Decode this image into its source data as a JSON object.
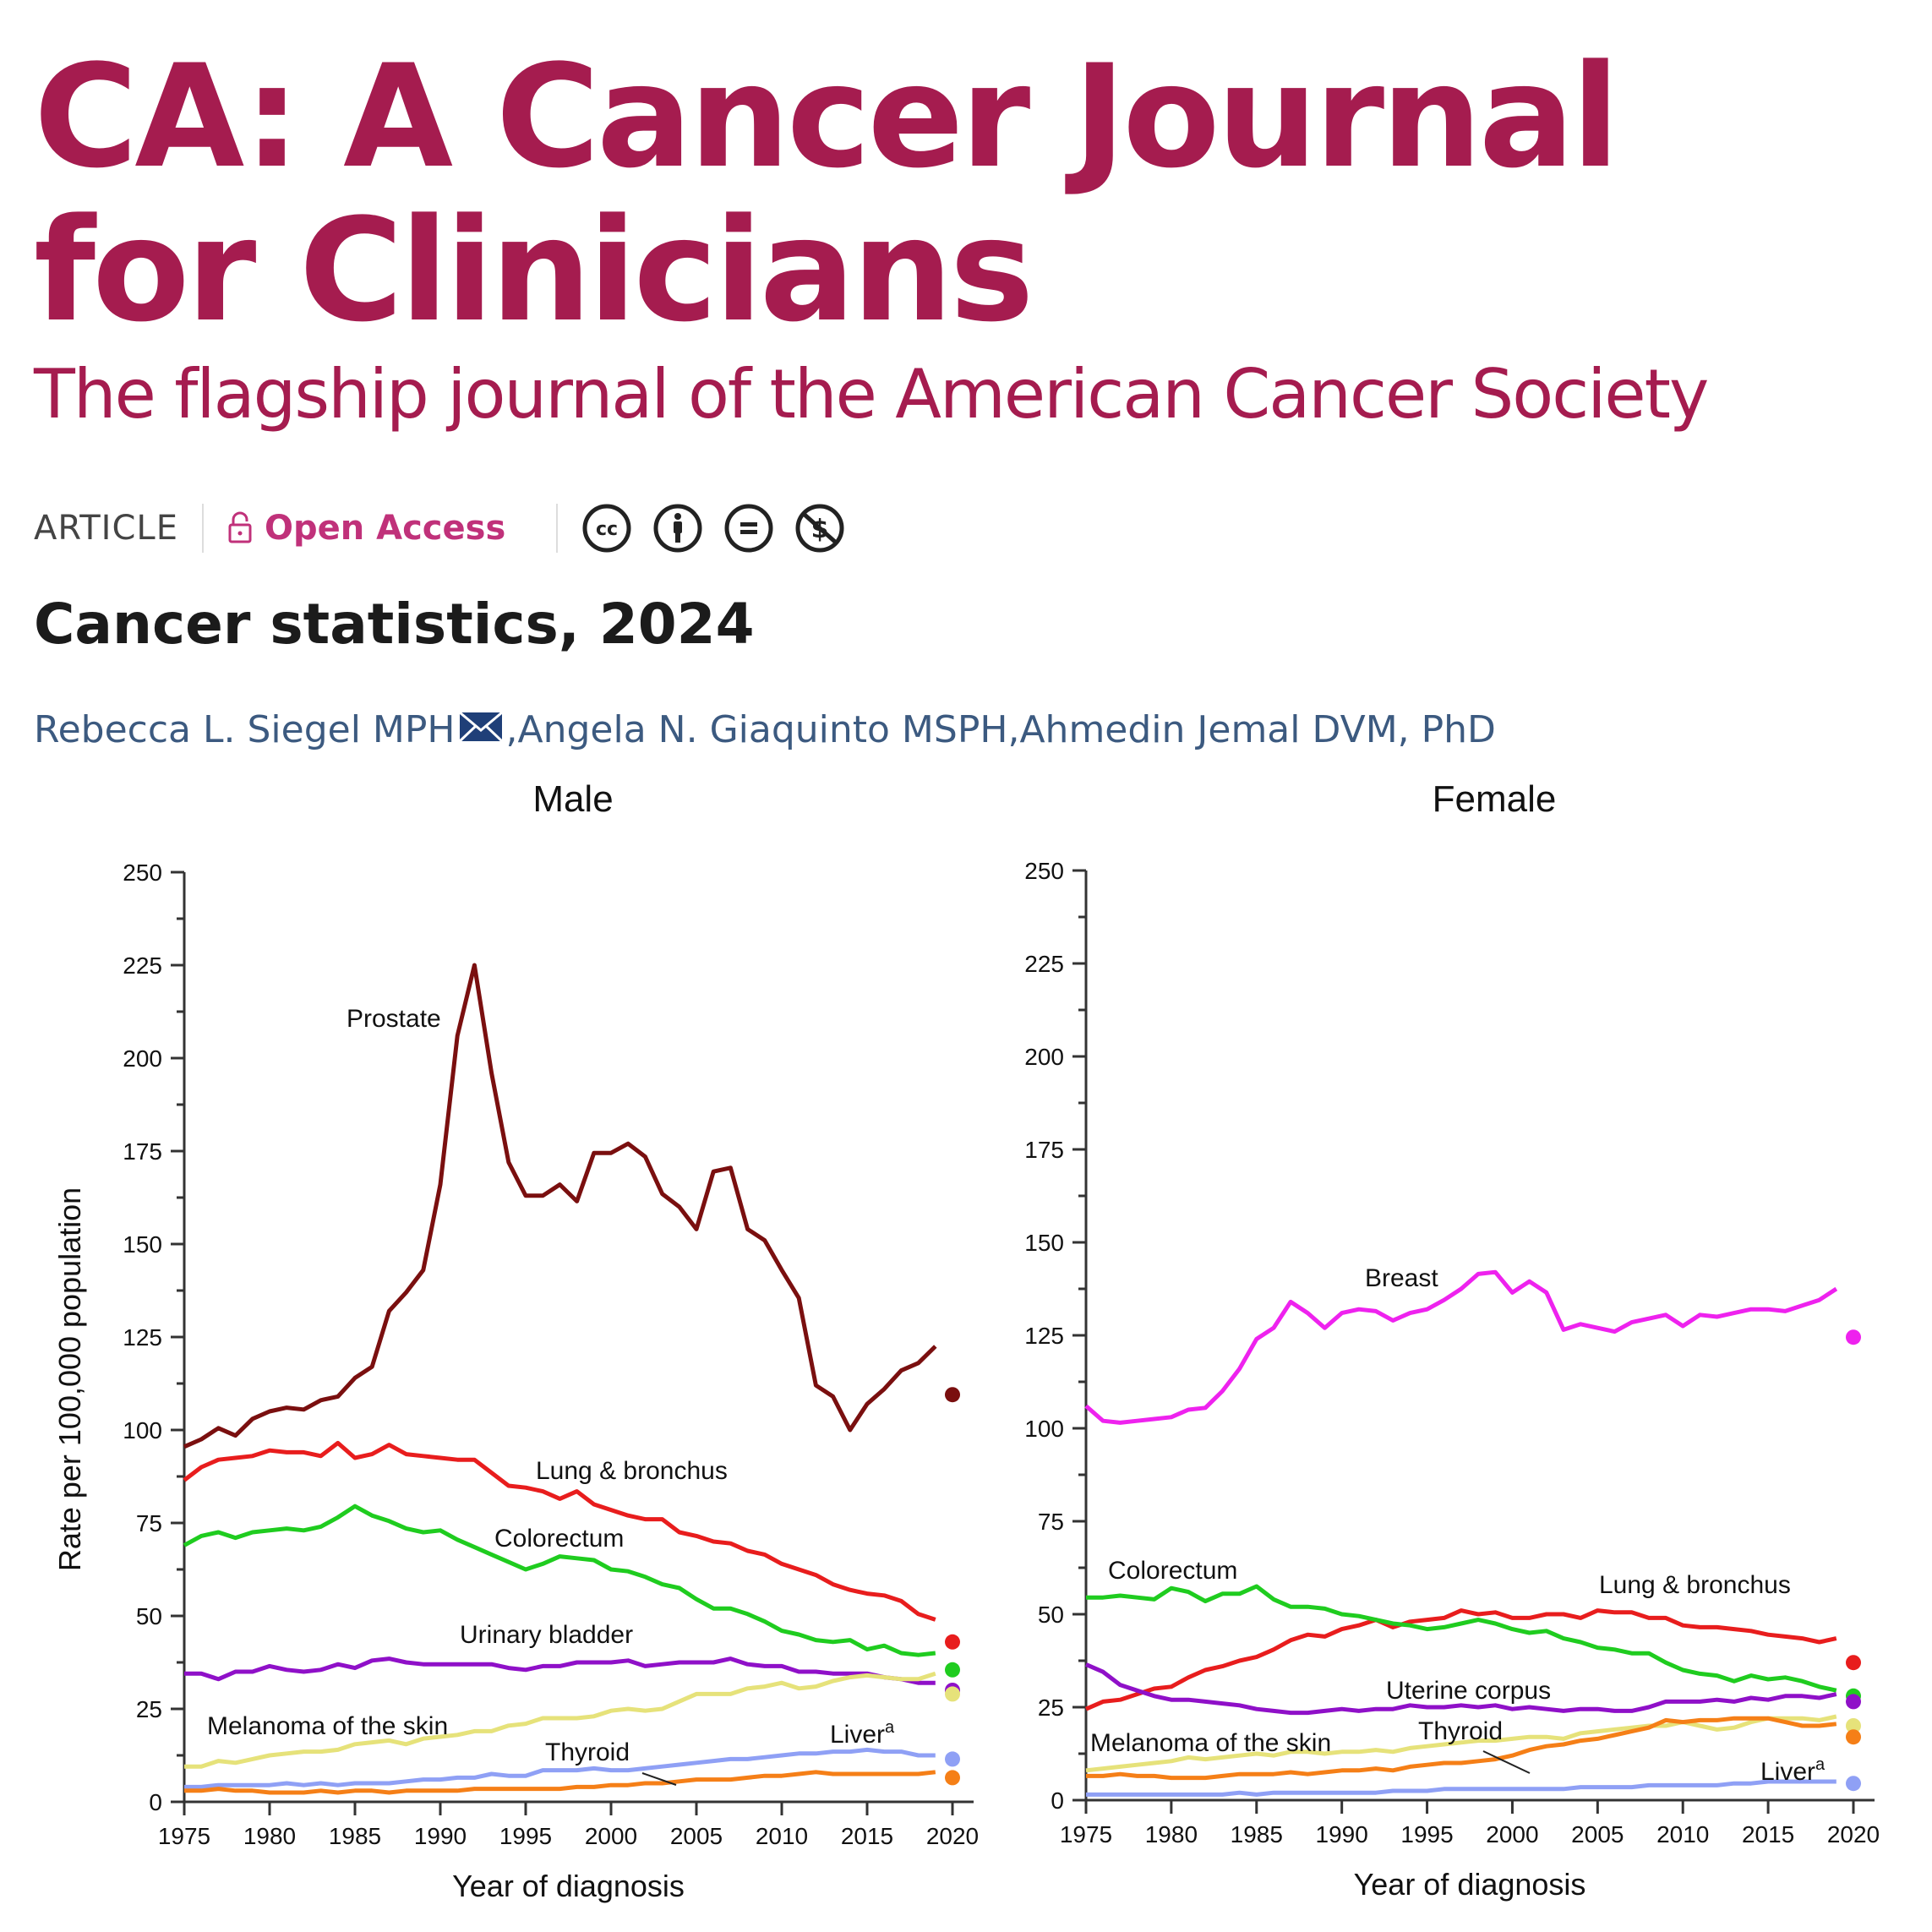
{
  "journal": {
    "title_line1": "CA: A Cancer Journal",
    "title_line2": "for Clinicians",
    "subtitle": "The flagship journal of the American Cancer Society",
    "brand_color": "#a51c4f"
  },
  "meta": {
    "article_type": "ARTICLE",
    "open_access_label": "Open Access",
    "open_access_icon": "lock-open-icon",
    "license_icons": [
      "cc-icon",
      "cc-by-icon",
      "cc-nd-icon",
      "cc-nc-icon"
    ]
  },
  "article": {
    "title": "Cancer statistics, 2024",
    "authors": [
      {
        "name": "Rebecca L. Siegel MPH",
        "corresponding": true
      },
      {
        "name": "Angela N. Giaquinto MSPH",
        "corresponding": false
      },
      {
        "name": "Ahmedin Jemal DVM, PhD",
        "corresponding": false
      }
    ],
    "author_separator": ", "
  },
  "chart_data": [
    {
      "type": "line",
      "title": "Male",
      "xlabel": "Year of diagnosis",
      "ylabel": "Rate per 100,000 population",
      "xlim": [
        1975,
        2020
      ],
      "ylim": [
        0,
        250
      ],
      "xticks": [
        1975,
        1980,
        1985,
        1990,
        1995,
        2000,
        2005,
        2010,
        2015,
        2020
      ],
      "yticks": [
        0,
        25,
        50,
        75,
        100,
        125,
        150,
        175,
        200,
        225,
        250
      ],
      "x": [
        1975,
        1976,
        1977,
        1978,
        1979,
        1980,
        1981,
        1982,
        1983,
        1984,
        1985,
        1986,
        1987,
        1988,
        1989,
        1990,
        1991,
        1992,
        1993,
        1994,
        1995,
        1996,
        1997,
        1998,
        1999,
        2000,
        2001,
        2002,
        2003,
        2004,
        2005,
        2006,
        2007,
        2008,
        2009,
        2010,
        2011,
        2012,
        2013,
        2014,
        2015,
        2016,
        2017,
        2018,
        2019
      ],
      "series": [
        {
          "name": "Prostate",
          "label": "Prostate",
          "color": "#7a0f0f",
          "point_2020": 109.5,
          "values": [
            95.5,
            97.5,
            100.5,
            98.5,
            103,
            105,
            106,
            105.5,
            108,
            109,
            114,
            117,
            132,
            137,
            143,
            166,
            206,
            225,
            196,
            172,
            163,
            163,
            166,
            161.5,
            174.5,
            174.5,
            177,
            173.5,
            163.5,
            160,
            154,
            169.5,
            170.5,
            154,
            151,
            143,
            135.5,
            112,
            109,
            100,
            107,
            111,
            116,
            118,
            122.5
          ]
        },
        {
          "name": "Lung & bronchus",
          "label": "Lung & bronchus",
          "color": "#e81d1d",
          "point_2020": 43,
          "values": [
            86.5,
            90,
            92,
            92.5,
            93,
            94.5,
            94,
            94,
            93,
            96.5,
            92.5,
            93.5,
            96,
            93.5,
            93,
            92.5,
            92,
            92,
            88.5,
            85,
            84.5,
            83.5,
            81.5,
            83.5,
            80,
            78.5,
            77,
            76,
            76,
            72.5,
            71.5,
            70,
            69.5,
            67.5,
            66.5,
            64,
            62.5,
            61,
            58.5,
            57,
            56,
            55.5,
            54,
            50.5,
            49
          ]
        },
        {
          "name": "Colorectum",
          "label": "Colorectum",
          "color": "#1fcc1f",
          "point_2020": 35.5,
          "values": [
            69,
            71.5,
            72.5,
            71,
            72.5,
            73,
            73.5,
            73,
            74,
            76.5,
            79.5,
            77,
            75.5,
            73.5,
            72.5,
            73,
            70.5,
            68.5,
            66.5,
            64.5,
            62.5,
            64,
            66,
            65.5,
            65,
            62.5,
            62,
            60.5,
            58.5,
            57.5,
            54.5,
            52,
            52,
            50.5,
            48.5,
            46,
            45,
            43.5,
            43,
            43.5,
            41,
            42,
            40,
            39.5,
            40
          ]
        },
        {
          "name": "Urinary bladder",
          "label": "Urinary bladder",
          "color": "#8f10c8",
          "point_2020": 30,
          "values": [
            34.5,
            34.5,
            33,
            35,
            35,
            36.5,
            35.5,
            35,
            35.5,
            37,
            36,
            38,
            38.5,
            37.5,
            37,
            37,
            37,
            37,
            37,
            36,
            35.5,
            36.5,
            36.5,
            37.5,
            37.5,
            37.5,
            38,
            36.5,
            37,
            37.5,
            37.5,
            37.5,
            38.5,
            37,
            36.5,
            36.5,
            35,
            35,
            34.5,
            34.5,
            34.5,
            33.5,
            33,
            32,
            32
          ]
        },
        {
          "name": "Melanoma of the skin",
          "label": "Melanoma of the skin",
          "color": "#e6e27a",
          "point_2020": 29,
          "values": [
            9.5,
            9.5,
            11,
            10.5,
            11.5,
            12.5,
            13,
            13.5,
            13.5,
            14,
            15.5,
            16,
            16.5,
            15.5,
            17,
            17.5,
            18,
            19,
            19,
            20.5,
            21,
            22.5,
            22.5,
            22.5,
            23,
            24.5,
            25,
            24.5,
            25,
            27,
            29,
            29,
            29,
            30.5,
            31,
            32,
            30.5,
            31,
            32.5,
            33.5,
            34,
            33.5,
            33,
            33,
            34.5
          ]
        },
        {
          "name": "Liver",
          "label": "Liver",
          "label_superscript": "a",
          "color": "#8fa0f5",
          "point_2020": 11.5,
          "values": [
            4,
            4,
            4.5,
            4.5,
            4.5,
            4.5,
            5,
            4.5,
            5,
            4.5,
            5,
            5,
            5,
            5.5,
            6,
            6,
            6.5,
            6.5,
            7.5,
            7,
            7,
            8.5,
            8.5,
            8.5,
            9,
            8.5,
            8.5,
            9,
            9.5,
            10,
            10.5,
            11,
            11.5,
            11.5,
            12,
            12.5,
            13,
            13,
            13.5,
            13.5,
            14,
            13.5,
            13.5,
            12.5,
            12.5
          ]
        },
        {
          "name": "Thyroid",
          "label": "Thyroid",
          "color": "#f57f17",
          "point_2020": 6.5,
          "values": [
            3,
            3,
            3.5,
            3,
            3,
            2.5,
            2.5,
            2.5,
            3,
            2.5,
            3,
            3,
            2.5,
            3,
            3,
            3,
            3,
            3.5,
            3.5,
            3.5,
            3.5,
            3.5,
            3.5,
            4,
            4,
            4.5,
            4.5,
            5,
            5,
            5.5,
            6,
            6,
            6,
            6.5,
            7,
            7,
            7.5,
            8,
            7.5,
            7.5,
            7.5,
            7.5,
            7.5,
            7.5,
            8
          ]
        }
      ]
    },
    {
      "type": "line",
      "title": "Female",
      "xlabel": "Year of diagnosis",
      "ylabel": "",
      "xlim": [
        1975,
        2020
      ],
      "ylim": [
        0,
        250
      ],
      "xticks": [
        1975,
        1980,
        1985,
        1990,
        1995,
        2000,
        2005,
        2010,
        2015,
        2020
      ],
      "yticks": [
        0,
        25,
        50,
        75,
        100,
        125,
        150,
        175,
        200,
        225,
        250
      ],
      "x": [
        1975,
        1976,
        1977,
        1978,
        1979,
        1980,
        1981,
        1982,
        1983,
        1984,
        1985,
        1986,
        1987,
        1988,
        1989,
        1990,
        1991,
        1992,
        1993,
        1994,
        1995,
        1996,
        1997,
        1998,
        1999,
        2000,
        2001,
        2002,
        2003,
        2004,
        2005,
        2006,
        2007,
        2008,
        2009,
        2010,
        2011,
        2012,
        2013,
        2014,
        2015,
        2016,
        2017,
        2018,
        2019
      ],
      "series": [
        {
          "name": "Breast",
          "label": "Breast",
          "color": "#ee22ee",
          "point_2020": 124.5,
          "values": [
            106,
            102,
            101.5,
            102,
            102.5,
            103,
            105,
            105.5,
            110,
            116,
            124,
            127,
            134,
            131,
            127,
            131,
            132,
            131.5,
            129,
            131,
            132,
            134.5,
            137.5,
            141.5,
            142,
            136.5,
            139.5,
            136.5,
            126.5,
            128,
            127,
            126,
            128.5,
            129.5,
            130.5,
            127.5,
            130.5,
            130,
            131,
            132,
            132,
            131.5,
            133,
            134.5,
            137.5
          ]
        },
        {
          "name": "Lung & bronchus",
          "label": "Lung & bronchus",
          "color": "#e81d1d",
          "point_2020": 37,
          "values": [
            24.5,
            26.5,
            27,
            28.5,
            30,
            30.5,
            33,
            35,
            36,
            37.5,
            38.5,
            40.5,
            43,
            44.5,
            44,
            46,
            47,
            48.5,
            46.5,
            48,
            48.5,
            49,
            51,
            50,
            50.5,
            49,
            49,
            50,
            50,
            49,
            51,
            50.5,
            50.5,
            49,
            49,
            47,
            46.5,
            46.5,
            46,
            45.5,
            44.5,
            44,
            43.5,
            42.5,
            43.5
          ]
        },
        {
          "name": "Colorectum",
          "label": "Colorectum",
          "color": "#1fcc1f",
          "point_2020": 28,
          "values": [
            54.5,
            54.5,
            55,
            54.5,
            54,
            57,
            56,
            53.5,
            55.5,
            55.5,
            57.5,
            54,
            52,
            52,
            51.5,
            50,
            49.5,
            48.5,
            47.5,
            47,
            46,
            46.5,
            47.5,
            48.5,
            47.5,
            46,
            45,
            45.5,
            43.5,
            42.5,
            41,
            40.5,
            39.5,
            39.5,
            37,
            35,
            34,
            33.5,
            32,
            33.5,
            32.5,
            33,
            32,
            30.5,
            29.5
          ]
        },
        {
          "name": "Uterine corpus",
          "label": "Uterine corpus",
          "color": "#8f10c8",
          "point_2020": 26.5,
          "values": [
            36.5,
            34.5,
            31,
            29.5,
            28,
            27,
            27,
            26.5,
            26,
            25.5,
            24.5,
            24,
            23.5,
            23.5,
            24,
            24.5,
            24,
            24.5,
            24.5,
            25.5,
            25,
            25,
            25.5,
            25,
            25.5,
            24.5,
            25,
            24.5,
            24,
            24.5,
            24.5,
            24,
            24,
            25,
            26.5,
            26.5,
            26.5,
            27,
            26.5,
            27.5,
            27,
            28,
            28,
            27.5,
            28.5
          ]
        },
        {
          "name": "Melanoma of the skin",
          "label": "Melanoma of the skin",
          "color": "#e6e27a",
          "point_2020": 20,
          "values": [
            8,
            8.5,
            9,
            9.5,
            10,
            10.5,
            11.5,
            11,
            11.5,
            12,
            12.5,
            12,
            13,
            13,
            12.5,
            13,
            13,
            13.5,
            13,
            14,
            14.5,
            15,
            15.5,
            16,
            16,
            16.5,
            17,
            17,
            16.5,
            18,
            18.5,
            19,
            19.5,
            20,
            20,
            21,
            20,
            19,
            19.5,
            21,
            22,
            22,
            22,
            21.5,
            22.5
          ]
        },
        {
          "name": "Thyroid",
          "label": "Thyroid",
          "color": "#f57f17",
          "point_2020": 17,
          "values": [
            6.5,
            6.5,
            7,
            6.5,
            6.5,
            6,
            6,
            6,
            6.5,
            7,
            7,
            7,
            7.5,
            7,
            7.5,
            8,
            8,
            8.5,
            8,
            9,
            9.5,
            10,
            10,
            10.5,
            11,
            12,
            13.5,
            14.5,
            15,
            16,
            16.5,
            17.5,
            18.5,
            19.5,
            21.5,
            21,
            21.5,
            21.5,
            22,
            22,
            22,
            21,
            20,
            20,
            20.5
          ]
        },
        {
          "name": "Liver",
          "label": "Liver",
          "label_superscript": "a",
          "color": "#8fa0f5",
          "point_2020": 4.5,
          "values": [
            1.5,
            1.5,
            1.5,
            1.5,
            1.5,
            1.5,
            1.5,
            1.5,
            1.5,
            2,
            1.5,
            2,
            2,
            2,
            2,
            2,
            2,
            2,
            2.5,
            2.5,
            2.5,
            3,
            3,
            3,
            3,
            3,
            3,
            3,
            3,
            3.5,
            3.5,
            3.5,
            3.5,
            4,
            4,
            4,
            4,
            4,
            4.5,
            4.5,
            5,
            5,
            5,
            5,
            5
          ]
        }
      ]
    }
  ]
}
